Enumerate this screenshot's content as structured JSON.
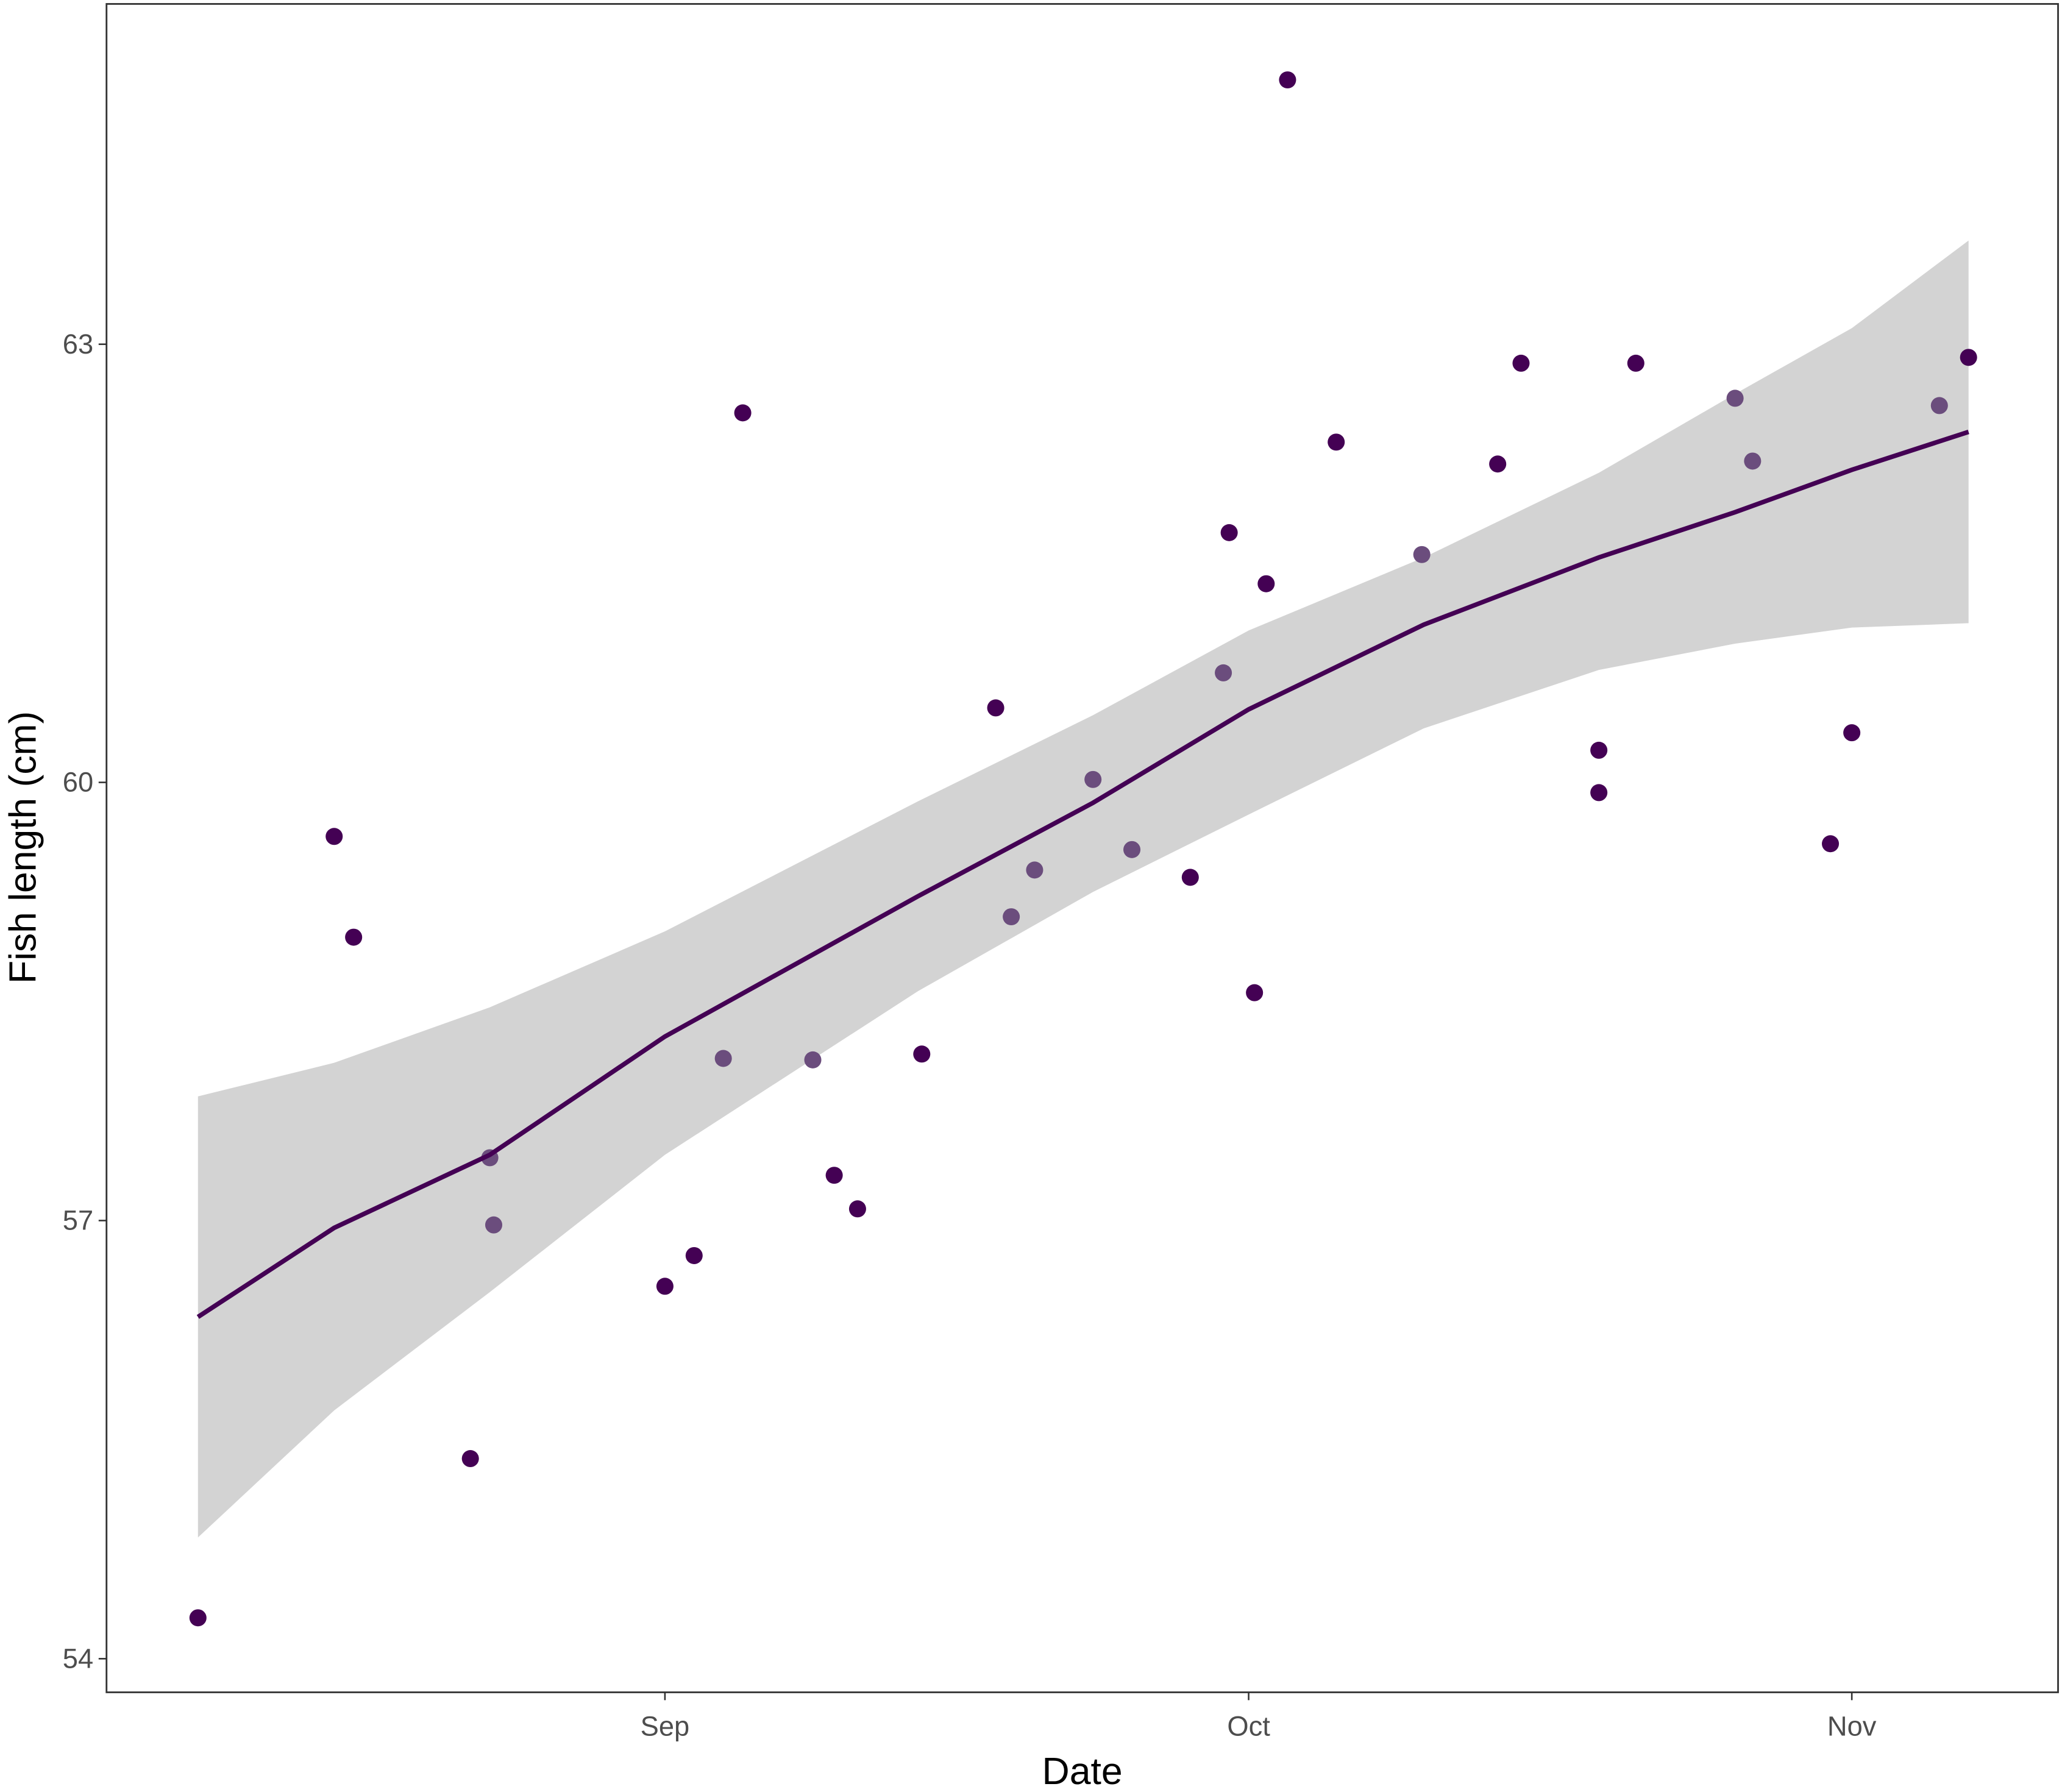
{
  "chart_data": {
    "type": "scatter",
    "x_label": "Date",
    "y_label": "Fish length (cm)",
    "xlim": [
      -28.7,
      71.6
    ],
    "ylim": [
      53.77,
      65.33
    ],
    "xticks": [
      {
        "value": 0,
        "label": "Sep"
      },
      {
        "value": 30,
        "label": "Oct"
      },
      {
        "value": 61,
        "label": "Nov"
      }
    ],
    "yticks": [
      54,
      57,
      60,
      63
    ],
    "grid": false,
    "x": [
      -24,
      -17,
      -16,
      -10,
      -9,
      -8.8,
      0,
      1.5,
      3,
      4,
      7.6,
      8.7,
      9.9,
      13.2,
      17,
      17.8,
      19,
      22,
      24,
      27,
      28.7,
      29,
      30.3,
      30.9,
      32,
      34.5,
      38.9,
      42.8,
      44,
      48,
      48,
      49.9,
      55,
      55.9,
      59.9,
      61,
      65.5,
      67
    ],
    "values": [
      54.28,
      59.63,
      58.94,
      55.37,
      57.43,
      56.97,
      56.55,
      56.76,
      58.11,
      62.53,
      58.1,
      57.31,
      57.08,
      58.14,
      60.51,
      59.08,
      59.4,
      60.02,
      59.54,
      59.35,
      60.75,
      61.71,
      58.56,
      61.36,
      64.81,
      62.33,
      61.56,
      62.18,
      62.87,
      60.22,
      59.93,
      62.87,
      62.63,
      62.2,
      59.58,
      60.34,
      62.58,
      62.91
    ],
    "point_colors": [
      "#440154",
      "#440154",
      "#440154",
      "#440154",
      "#6b4d7d",
      "#6b4d7d",
      "#440154",
      "#440154",
      "#6b4d7d",
      "#440154",
      "#6b4d7d",
      "#440154",
      "#440154",
      "#440154",
      "#440154",
      "#6b4d7d",
      "#6b4d7d",
      "#6b4d7d",
      "#6b4d7d",
      "#440154",
      "#6b4d7d",
      "#440154",
      "#440154",
      "#440154",
      "#440154",
      "#440154",
      "#6b4d7d",
      "#440154",
      "#440154",
      "#440154",
      "#440154",
      "#440154",
      "#6b4d7d",
      "#6b4d7d",
      "#440154",
      "#440154",
      "#6b4d7d",
      "#440154"
    ],
    "smooth": {
      "color": "#440154",
      "band_color": "#d3d3d3",
      "x": [
        -24,
        -17,
        -9,
        0,
        13,
        22,
        30,
        39,
        48,
        55,
        61,
        67
      ],
      "values": [
        56.34,
        56.95,
        57.45,
        58.26,
        59.22,
        59.86,
        60.5,
        61.08,
        61.54,
        61.85,
        62.14,
        62.4
      ],
      "lower": [
        54.83,
        55.7,
        56.51,
        57.45,
        58.57,
        59.25,
        59.78,
        60.37,
        60.77,
        60.95,
        61.06,
        61.09
      ],
      "upper": [
        57.85,
        58.08,
        58.46,
        58.98,
        59.87,
        60.46,
        61.04,
        61.54,
        62.12,
        62.66,
        63.11,
        63.71
      ]
    }
  }
}
